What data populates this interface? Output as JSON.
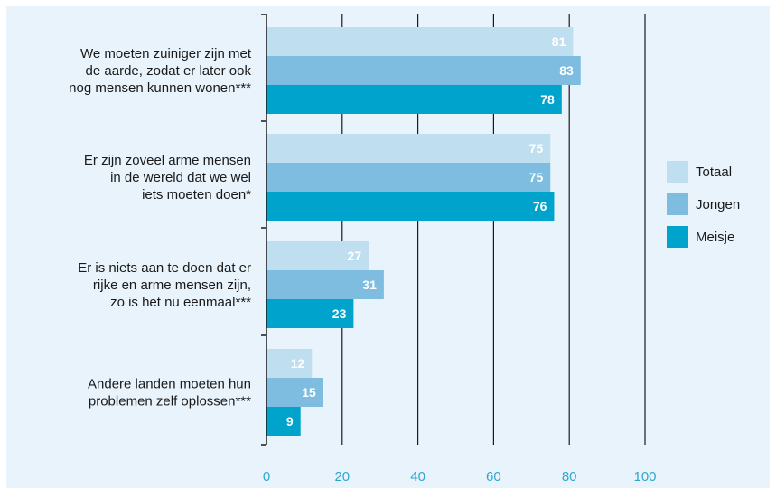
{
  "chart_data": {
    "type": "bar",
    "orientation": "horizontal",
    "title": "",
    "xlabel": "",
    "ylabel": "",
    "xlim": [
      0,
      100
    ],
    "x_ticks": [
      0,
      20,
      40,
      60,
      80,
      100
    ],
    "grid": true,
    "legend_position": "right",
    "categories": [
      [
        "We moeten zuiniger zijn met",
        "de aarde, zodat er later ook",
        "nog mensen kunnen wonen***"
      ],
      [
        "Er zijn zoveel arme mensen",
        "in de wereld dat we wel",
        "iets moeten doen*"
      ],
      [
        "Er is niets aan te doen dat er",
        "rijke en arme mensen zijn,",
        "zo is het nu eenmaal***"
      ],
      [
        "Andere landen moeten hun",
        "problemen zelf oplossen***"
      ]
    ],
    "series": [
      {
        "name": "Totaal",
        "color": "#bfdff0",
        "values": [
          81,
          75,
          27,
          12
        ]
      },
      {
        "name": "Jongen",
        "color": "#7ebde0",
        "values": [
          83,
          75,
          31,
          15
        ]
      },
      {
        "name": "Meisje",
        "color": "#00a3cc",
        "values": [
          78,
          76,
          23,
          9
        ]
      }
    ],
    "colors": {
      "background": "#e8f3fb",
      "axis": "#1a1a1a",
      "tick_label": "#2aa8d0",
      "value_label": "#ffffff",
      "category_label": "#1a1a1a"
    }
  }
}
